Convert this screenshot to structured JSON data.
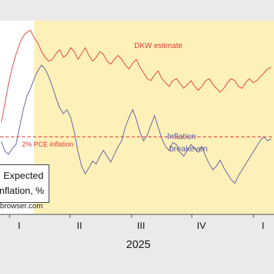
{
  "chart_data": {
    "type": "line",
    "title": "",
    "xlabel": "2025",
    "ylabel": "Expected inflation, %",
    "x_ticks": [
      "I",
      "II",
      "III",
      "IV",
      "I"
    ],
    "reference_line": {
      "label": "2% PCE inflation",
      "value": 2.0,
      "color": "#e23b3b"
    },
    "ylim": [
      1.2,
      3.2
    ],
    "x_range": [
      0,
      37
    ],
    "shaded_region_start": 4.5,
    "shading_color": "#fdf0b8",
    "series": [
      {
        "name": "DKW estimate",
        "color": "#e23b3b",
        "x": [
          0,
          0.5,
          1,
          1.5,
          2,
          2.5,
          3,
          3.5,
          4,
          4.5,
          5,
          5.5,
          6,
          6.5,
          7,
          7.5,
          8,
          8.5,
          9,
          9.5,
          10,
          10.5,
          11,
          11.5,
          12,
          12.5,
          13,
          13.5,
          14,
          14.5,
          15,
          15.5,
          16,
          16.5,
          17,
          17.5,
          18,
          18.5,
          19,
          19.5,
          20,
          20.5,
          21,
          21.5,
          22,
          22.5,
          23,
          23.5,
          24,
          24.5,
          25,
          25.5,
          26,
          26.5,
          27,
          27.5,
          28,
          28.5,
          29,
          29.5,
          30,
          30.5,
          31,
          31.5,
          32,
          32.5,
          33,
          33.5,
          34,
          34.5,
          35,
          35.5,
          36,
          36.5,
          37
        ],
        "values": [
          2.15,
          2.35,
          2.55,
          2.72,
          2.85,
          2.96,
          3.04,
          3.08,
          3.1,
          3.02,
          2.97,
          2.88,
          2.82,
          2.78,
          2.8,
          2.86,
          2.9,
          2.82,
          2.85,
          2.92,
          2.88,
          2.8,
          2.86,
          2.92,
          2.84,
          2.78,
          2.82,
          2.88,
          2.85,
          2.78,
          2.75,
          2.8,
          2.84,
          2.8,
          2.74,
          2.7,
          2.76,
          2.8,
          2.72,
          2.66,
          2.6,
          2.58,
          2.64,
          2.68,
          2.6,
          2.56,
          2.52,
          2.58,
          2.6,
          2.55,
          2.5,
          2.54,
          2.58,
          2.52,
          2.48,
          2.52,
          2.58,
          2.6,
          2.54,
          2.5,
          2.46,
          2.5,
          2.56,
          2.6,
          2.58,
          2.52,
          2.5,
          2.56,
          2.6,
          2.56,
          2.58,
          2.62,
          2.66,
          2.7,
          2.72
        ]
      },
      {
        "name": "Inflation breakeven",
        "color": "#5a5aa8",
        "x": [
          0,
          0.5,
          1,
          1.5,
          2,
          2.5,
          3,
          3.5,
          4,
          4.5,
          5,
          5.5,
          6,
          6.5,
          7,
          7.5,
          8,
          8.5,
          9,
          9.5,
          10,
          10.5,
          11,
          11.5,
          12,
          12.5,
          13,
          13.5,
          14,
          14.5,
          15,
          15.5,
          16,
          16.5,
          17,
          17.5,
          18,
          18.5,
          19,
          19.5,
          20,
          20.5,
          21,
          21.5,
          22,
          22.5,
          23,
          23.5,
          24,
          24.5,
          25,
          25.5,
          26,
          26.5,
          27,
          27.5,
          28,
          28.5,
          29,
          29.5,
          30,
          30.5,
          31,
          31.5,
          32,
          32.5,
          33,
          33.5,
          34,
          34.5,
          35,
          35.5,
          36,
          36.5,
          37
        ],
        "values": [
          1.95,
          1.85,
          1.82,
          1.88,
          1.92,
          2.1,
          2.28,
          2.42,
          2.5,
          2.6,
          2.68,
          2.74,
          2.7,
          2.62,
          2.52,
          2.4,
          2.3,
          2.24,
          2.28,
          2.2,
          2.05,
          1.85,
          1.7,
          1.62,
          1.68,
          1.75,
          1.72,
          1.8,
          1.86,
          1.8,
          1.74,
          1.82,
          1.9,
          1.96,
          2.1,
          2.2,
          2.28,
          2.18,
          2.05,
          1.96,
          2.02,
          2.12,
          2.22,
          2.1,
          1.98,
          1.9,
          1.86,
          1.94,
          1.92,
          1.84,
          1.8,
          1.86,
          1.92,
          1.88,
          1.84,
          1.9,
          1.8,
          1.72,
          1.66,
          1.7,
          1.76,
          1.68,
          1.62,
          1.56,
          1.52,
          1.6,
          1.66,
          1.72,
          1.78,
          1.84,
          1.9,
          1.96,
          2.0,
          1.96,
          1.98
        ]
      }
    ]
  },
  "label_box": {
    "line1": "Expected",
    "line2": "nflation, %"
  },
  "credit": "browser.com"
}
